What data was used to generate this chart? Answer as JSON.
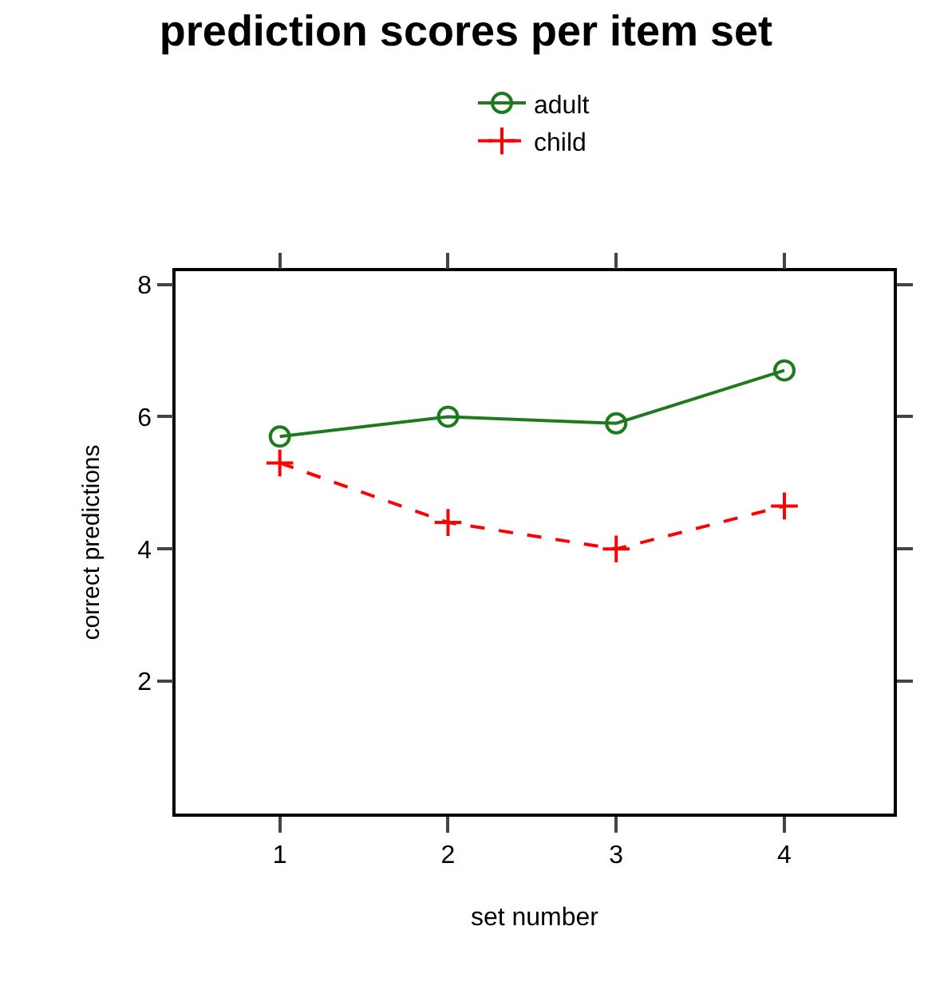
{
  "chart_data": {
    "type": "line",
    "title": "prediction scores per item set",
    "xlabel": "set number",
    "ylabel": "correct predictions",
    "x": [
      1,
      2,
      3,
      4
    ],
    "series": [
      {
        "name": "adult",
        "color": "#1f7a1f",
        "values": [
          5.7,
          6.0,
          5.9,
          6.7
        ],
        "marker": "circle",
        "line_style": "solid"
      },
      {
        "name": "child",
        "color": "#ff0000",
        "values": [
          5.3,
          4.4,
          4.0,
          4.65
        ],
        "marker": "cross",
        "line_style": "dashed"
      }
    ],
    "xlim": [
      0.38,
      4.65
    ],
    "xticks": [
      1,
      2,
      3,
      4
    ],
    "ylim": [
      0,
      8.2
    ],
    "yticks": [
      2,
      4,
      6,
      8
    ],
    "grid": false,
    "legend": "top"
  }
}
